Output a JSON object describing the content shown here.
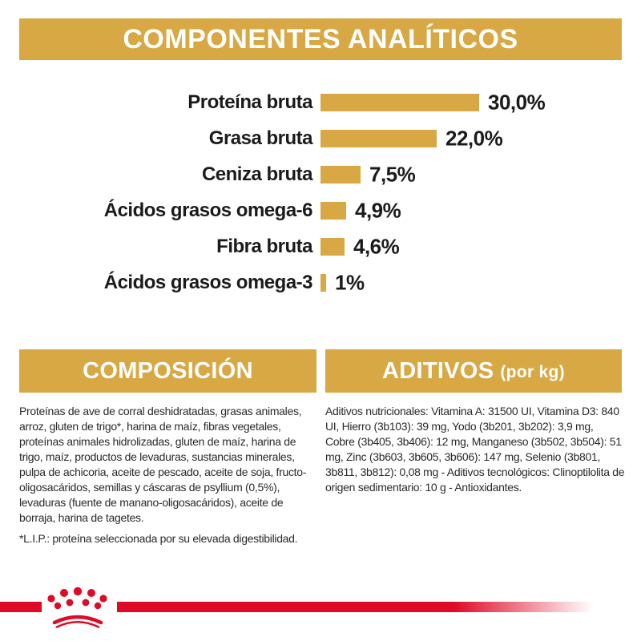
{
  "header": {
    "title": "COMPONENTES ANALÍTICOS"
  },
  "chart": {
    "rows": [
      {
        "label": "Proteína bruta",
        "value": 30.0,
        "value_label": "30,0%"
      },
      {
        "label": "Grasa bruta",
        "value": 22.0,
        "value_label": "22,0%"
      },
      {
        "label": "Ceniza bruta",
        "value": 7.5,
        "value_label": "7,5%"
      },
      {
        "label": "Ácidos grasos omega-6",
        "value": 4.9,
        "value_label": "4,9%"
      },
      {
        "label": "Fibra bruta",
        "value": 4.6,
        "value_label": "4,6%"
      },
      {
        "label": "Ácidos grasos omega-3",
        "value": 1.0,
        "value_label": "1%"
      }
    ]
  },
  "sections": {
    "composicion": {
      "title": "COMPOSICIÓN",
      "body": "Proteínas de ave de corral deshidratadas, grasas animales, arroz, gluten de trigo*, harina de maíz, fibras vegetales, proteínas animales hidrolizadas, gluten de maíz, harina de trigo, maíz, productos de levaduras, sustancias minerales, pulpa de achicoria, aceite de pescado, aceite de soja, fructo-oligosacáridos, semillas y cáscaras de psyllium (0,5%), levaduras (fuente de manano-oligosacáridos), aceite de borraja, harina de tagetes.",
      "footnote": "*L.I.P.: proteína seleccionada por su elevada digestibilidad."
    },
    "aditivos": {
      "title_main": "ADITIVOS",
      "title_suffix": "(por kg)",
      "body": "Aditivos nutricionales: Vitamina A: 31500 UI, Vitamina D3: 840 UI, Hierro (3b103): 39 mg, Yodo (3b201, 3b202): 3,9 mg, Cobre (3b405, 3b406): 12 mg, Manganeso (3b502, 3b504): 51 mg, Zinc (3b603, 3b605, 3b606): 147 mg, Selenio (3b801, 3b811, 3b812): 0,08 mg - Aditivos tecnológicos: Clinoptilolita de origen sedimentario: 10 g - Antioxidantes."
    }
  },
  "colors": {
    "gold": "#D8A844",
    "red": "#E00A26",
    "text": "#1B1B1B"
  },
  "chart_data": {
    "type": "bar",
    "orientation": "horizontal",
    "title": "COMPONENTES ANALÍTICOS",
    "categories": [
      "Proteína bruta",
      "Grasa bruta",
      "Ceniza bruta",
      "Ácidos grasos omega-6",
      "Fibra bruta",
      "Ácidos grasos omega-3"
    ],
    "values": [
      30.0,
      22.0,
      7.5,
      4.9,
      4.6,
      1.0
    ],
    "value_labels": [
      "30,0%",
      "22,0%",
      "7,5%",
      "4,9%",
      "4,6%",
      "1%"
    ],
    "unit": "%",
    "xlim": [
      0,
      32
    ],
    "bar_color": "#D8A844",
    "grid": false,
    "legend": "none",
    "data_labels_position": "right-of-bar"
  }
}
